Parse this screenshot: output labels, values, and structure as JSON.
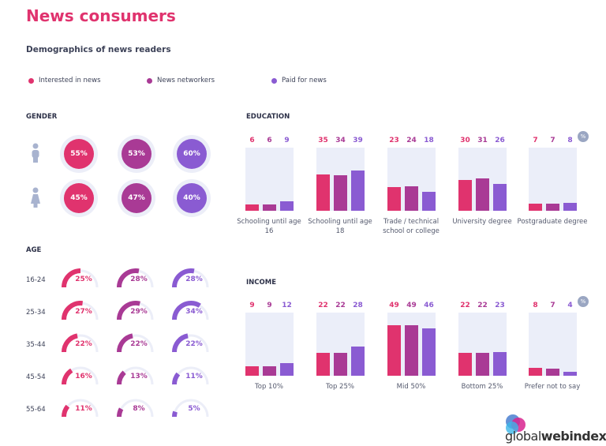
{
  "title": "News consumers",
  "subtitle": "Demographics of news readers",
  "legend": [
    {
      "label": "Interested in news",
      "color": "#e0336e"
    },
    {
      "label": "News networkers",
      "color": "#a93a95"
    },
    {
      "label": "Paid for news",
      "color": "#8a5bd2"
    }
  ],
  "gender": {
    "label": "GENDER",
    "rows": [
      {
        "icon": "male-icon",
        "values": [
          "55%",
          "53%",
          "60%"
        ]
      },
      {
        "icon": "female-icon",
        "values": [
          "45%",
          "47%",
          "40%"
        ]
      }
    ]
  },
  "age": {
    "label": "AGE",
    "gauge_max": 50,
    "rows": [
      {
        "label": "16-24",
        "values": [
          25,
          28,
          28
        ],
        "text": [
          "25%",
          "28%",
          "28%"
        ]
      },
      {
        "label": "25-34",
        "values": [
          27,
          29,
          34
        ],
        "text": [
          "27%",
          "29%",
          "34%"
        ]
      },
      {
        "label": "35-44",
        "values": [
          22,
          22,
          22
        ],
        "text": [
          "22%",
          "22%",
          "22%"
        ]
      },
      {
        "label": "45-54",
        "values": [
          16,
          13,
          11
        ],
        "text": [
          "16%",
          "13%",
          "11%"
        ]
      },
      {
        "label": "55-64",
        "values": [
          11,
          8,
          5
        ],
        "text": [
          "11%",
          "8%",
          "5%"
        ]
      }
    ]
  },
  "chart_data": [
    {
      "type": "bar",
      "title": "EDUCATION",
      "unit_badge": "%",
      "categories": [
        "Schooling until age 16",
        "Schooling until age 18",
        "Trade / technical school or college",
        "University degree",
        "Postgraduate degree"
      ],
      "series": [
        {
          "name": "Interested in news",
          "values": [
            6,
            35,
            23,
            30,
            7
          ]
        },
        {
          "name": "News networkers",
          "values": [
            6,
            34,
            24,
            31,
            7
          ]
        },
        {
          "name": "Paid for news",
          "values": [
            9,
            39,
            18,
            26,
            8
          ]
        }
      ]
    },
    {
      "type": "bar",
      "title": "INCOME",
      "unit_badge": "%",
      "categories": [
        "Top 10%",
        "Top 25%",
        "Mid 50%",
        "Bottom 25%",
        "Prefer not to say"
      ],
      "series": [
        {
          "name": "Interested in news",
          "values": [
            9,
            22,
            49,
            22,
            8
          ]
        },
        {
          "name": "News networkers",
          "values": [
            9,
            22,
            49,
            22,
            7
          ]
        },
        {
          "name": "Paid for news",
          "values": [
            12,
            28,
            46,
            23,
            4
          ]
        }
      ]
    }
  ],
  "logo": {
    "text_light": "global",
    "text_bold": "webindex"
  }
}
